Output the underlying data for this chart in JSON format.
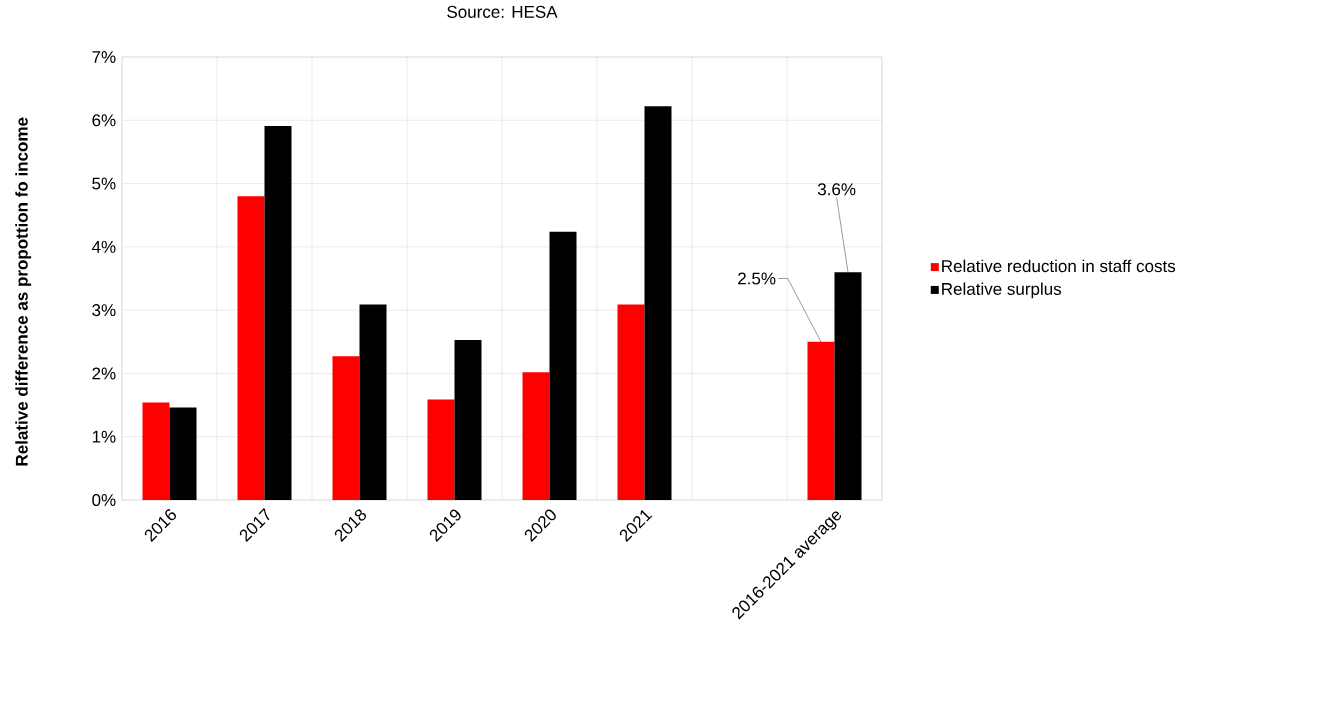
{
  "chart_data": {
    "type": "bar",
    "annotations": [
      "Source: HESA"
    ],
    "ylabel": "Relative difference as propottion fo income",
    "categories": [
      "2016",
      "2017",
      "2018",
      "2019",
      "2020",
      "2021",
      null,
      "2016-2021 average"
    ],
    "series": [
      {
        "name": "Relative reduction in staff costs",
        "color": "#ff0000",
        "values": [
          1.54,
          4.8,
          2.27,
          1.59,
          2.02,
          3.09,
          null,
          2.5
        ],
        "value_labels": [
          null,
          null,
          null,
          null,
          null,
          null,
          null,
          "2.5%"
        ]
      },
      {
        "name": "Relative surplus",
        "color": "#000000",
        "values": [
          1.46,
          5.91,
          3.09,
          2.53,
          4.24,
          6.22,
          null,
          3.6
        ],
        "value_labels": [
          null,
          null,
          null,
          null,
          null,
          null,
          null,
          "3.6%"
        ]
      }
    ],
    "ylim": [
      0,
      7
    ],
    "yticks": [
      {
        "value": 0,
        "label": "0%"
      },
      {
        "value": 1,
        "label": "1%"
      },
      {
        "value": 2,
        "label": "2%"
      },
      {
        "value": 3,
        "label": "3%"
      },
      {
        "value": 4,
        "label": "4%"
      },
      {
        "value": 5,
        "label": "5%"
      },
      {
        "value": 6,
        "label": "6%"
      },
      {
        "value": 7,
        "label": "7%"
      }
    ],
    "grid": true,
    "legend": "right"
  }
}
